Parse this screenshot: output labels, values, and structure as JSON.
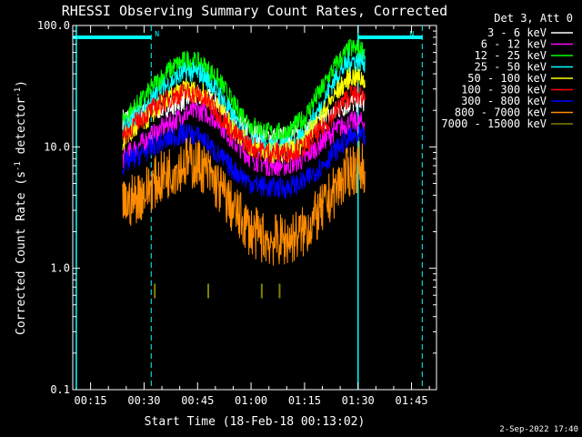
{
  "chart_data": {
    "type": "line",
    "title": "RHESSI Observing Summary Count Rates, Corrected",
    "xlabel": "Start Time (18-Feb-18 00:13:02)",
    "ylabel_main": "Corrected Count Rate (s",
    "ylabel_sup1": "-1",
    "ylabel_mid": " detector",
    "ylabel_sup2": "-1",
    "ylabel_end": ")",
    "yscale": "log",
    "ylim": [
      0.1,
      100
    ],
    "x_unit": "minutes after 00:00 UT",
    "xlim": [
      10,
      112
    ],
    "x_ticks": [
      {
        "x": 15,
        "label": "00:15"
      },
      {
        "x": 30,
        "label": "00:30"
      },
      {
        "x": 45,
        "label": "00:45"
      },
      {
        "x": 60,
        "label": "01:00"
      },
      {
        "x": 75,
        "label": "01:15"
      },
      {
        "x": 90,
        "label": "01:30"
      },
      {
        "x": 105,
        "label": "01:45"
      }
    ],
    "y_ticks": [
      {
        "y": 100,
        "label": "100.0"
      },
      {
        "y": 10,
        "label": "10.0"
      },
      {
        "y": 1,
        "label": "1.0"
      },
      {
        "y": 0.1,
        "label": "0.1"
      }
    ],
    "legend_header": "Det 3, Att 0",
    "legend_position": "top-right",
    "series": [
      {
        "name": "3 - 6 keV",
        "color": "#ffffff",
        "x": [
          24,
          30,
          38,
          42,
          46,
          50,
          55,
          60,
          65,
          70,
          75,
          80,
          84,
          88,
          92
        ],
        "y": [
          17,
          19,
          22,
          25,
          26,
          24,
          17,
          13,
          12,
          12,
          13,
          16,
          20,
          23,
          24
        ]
      },
      {
        "name": "6 - 12 keV",
        "color": "#ff00ff",
        "x": [
          24,
          30,
          38,
          42,
          46,
          50,
          55,
          60,
          65,
          70,
          75,
          80,
          84,
          88,
          92
        ],
        "y": [
          8,
          11,
          16,
          19,
          20,
          17,
          11,
          8,
          7,
          7,
          8,
          11,
          14,
          16,
          16
        ]
      },
      {
        "name": "12 - 25 keV",
        "color": "#00ff00",
        "x": [
          24,
          30,
          38,
          42,
          46,
          50,
          55,
          60,
          65,
          70,
          75,
          80,
          84,
          88,
          92
        ],
        "y": [
          16,
          25,
          45,
          52,
          48,
          38,
          22,
          15,
          13,
          13,
          17,
          30,
          48,
          65,
          62
        ]
      },
      {
        "name": "25 - 50 keV",
        "color": "#00ffff",
        "x": [
          24,
          30,
          38,
          42,
          46,
          50,
          55,
          60,
          65,
          70,
          75,
          80,
          84,
          88,
          92
        ],
        "y": [
          13,
          20,
          35,
          42,
          40,
          30,
          17,
          11,
          10,
          10,
          12,
          22,
          38,
          52,
          50
        ]
      },
      {
        "name": "50 - 100 keV",
        "color": "#ffff00",
        "x": [
          24,
          30,
          38,
          42,
          46,
          50,
          55,
          60,
          65,
          70,
          75,
          80,
          84,
          88,
          92
        ],
        "y": [
          11,
          16,
          26,
          30,
          28,
          22,
          14,
          10,
          9,
          9,
          11,
          18,
          28,
          38,
          36
        ]
      },
      {
        "name": "100 - 300 keV",
        "color": "#ff0000",
        "x": [
          24,
          30,
          38,
          42,
          46,
          50,
          55,
          60,
          65,
          70,
          75,
          80,
          84,
          88,
          92
        ],
        "y": [
          12,
          18,
          26,
          28,
          26,
          20,
          13,
          10,
          9,
          9,
          10,
          14,
          20,
          27,
          26
        ]
      },
      {
        "name": "300 - 800 keV",
        "color": "#0000ff",
        "x": [
          24,
          30,
          38,
          42,
          46,
          50,
          55,
          60,
          65,
          70,
          75,
          80,
          84,
          88,
          92
        ],
        "y": [
          7,
          9,
          12,
          13,
          12,
          9,
          6.5,
          5,
          4.6,
          4.6,
          5.2,
          7,
          9.5,
          12,
          12
        ]
      },
      {
        "name": "800 - 7000 keV",
        "color": "#ff8c00",
        "x": [
          24,
          30,
          38,
          42,
          46,
          50,
          55,
          60,
          65,
          70,
          75,
          80,
          84,
          88,
          92
        ],
        "y": [
          3.2,
          4.2,
          6.5,
          7.5,
          7,
          5,
          3,
          2,
          1.7,
          1.7,
          2,
          3,
          4.5,
          6.5,
          7
        ]
      },
      {
        "name": "7000 - 15000 keV",
        "color": "#808000",
        "x": [
          33,
          48,
          63,
          68
        ],
        "y": [
          0.65,
          0.65,
          0.65,
          0.65
        ]
      }
    ],
    "observing_flags": [
      {
        "label": "N",
        "x_start": 10,
        "x_end": 32
      },
      {
        "label": "N",
        "x_start": 90,
        "x_end": 108
      }
    ],
    "night_boundaries_x": [
      32,
      108
    ],
    "saa_boundaries_x": [
      11,
      90
    ],
    "grid": false
  },
  "timestamp": "2-Sep-2022 17:40"
}
